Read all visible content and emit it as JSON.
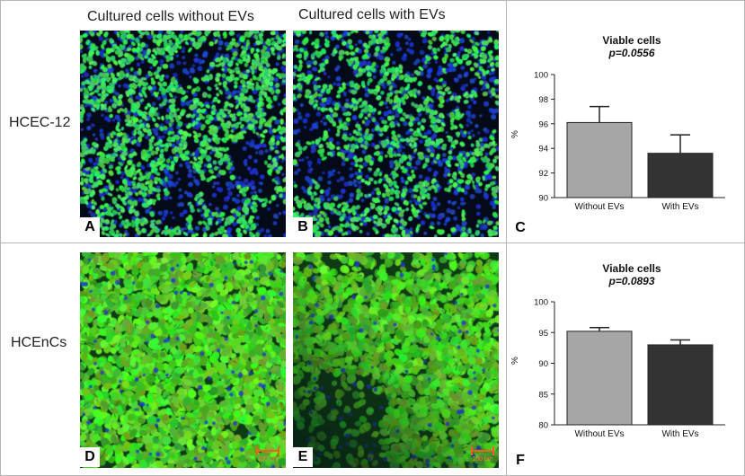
{
  "columns": {
    "without_evs_title": "Cultured cells without EVs",
    "with_evs_title": "Cultured cells with EVs"
  },
  "rows": {
    "hcec12_label": "HCEC-12",
    "hcencs_label": "HCEnCs"
  },
  "panels": {
    "a": "A",
    "b": "B",
    "c": "C",
    "d": "D",
    "e": "E",
    "f": "F"
  },
  "scale_bars": {
    "d_label": "100 µm",
    "e_label": "100 µm"
  },
  "colors": {
    "bar_without": "#a6a6a6",
    "bar_with": "#333333",
    "fluorescence_green": "#32d24a",
    "nuclei_blue": "#1530b0",
    "scale_bar": "#ff5a1f"
  },
  "chart_data": [
    {
      "type": "bar",
      "title": "Viable cells",
      "subtitle": "p=0.0556",
      "ylabel": "%",
      "xlabel": "",
      "categories": [
        "Without EVs",
        "With EVs"
      ],
      "values": [
        96.1,
        93.6
      ],
      "errors": [
        1.3,
        1.5
      ],
      "ylim": [
        90,
        100
      ],
      "yticks": [
        "90",
        "92",
        "94",
        "96",
        "98",
        "100"
      ],
      "grid": false
    },
    {
      "type": "bar",
      "title": "Viable cells",
      "subtitle": "p=0.0893",
      "ylabel": "%",
      "xlabel": "",
      "categories": [
        "Without EVs",
        "With EVs"
      ],
      "values": [
        95.2,
        93.0
      ],
      "errors": [
        0.6,
        0.8
      ],
      "ylim": [
        80,
        100
      ],
      "yticks": [
        "80",
        "85",
        "90",
        "95",
        "100"
      ],
      "grid": false
    }
  ]
}
